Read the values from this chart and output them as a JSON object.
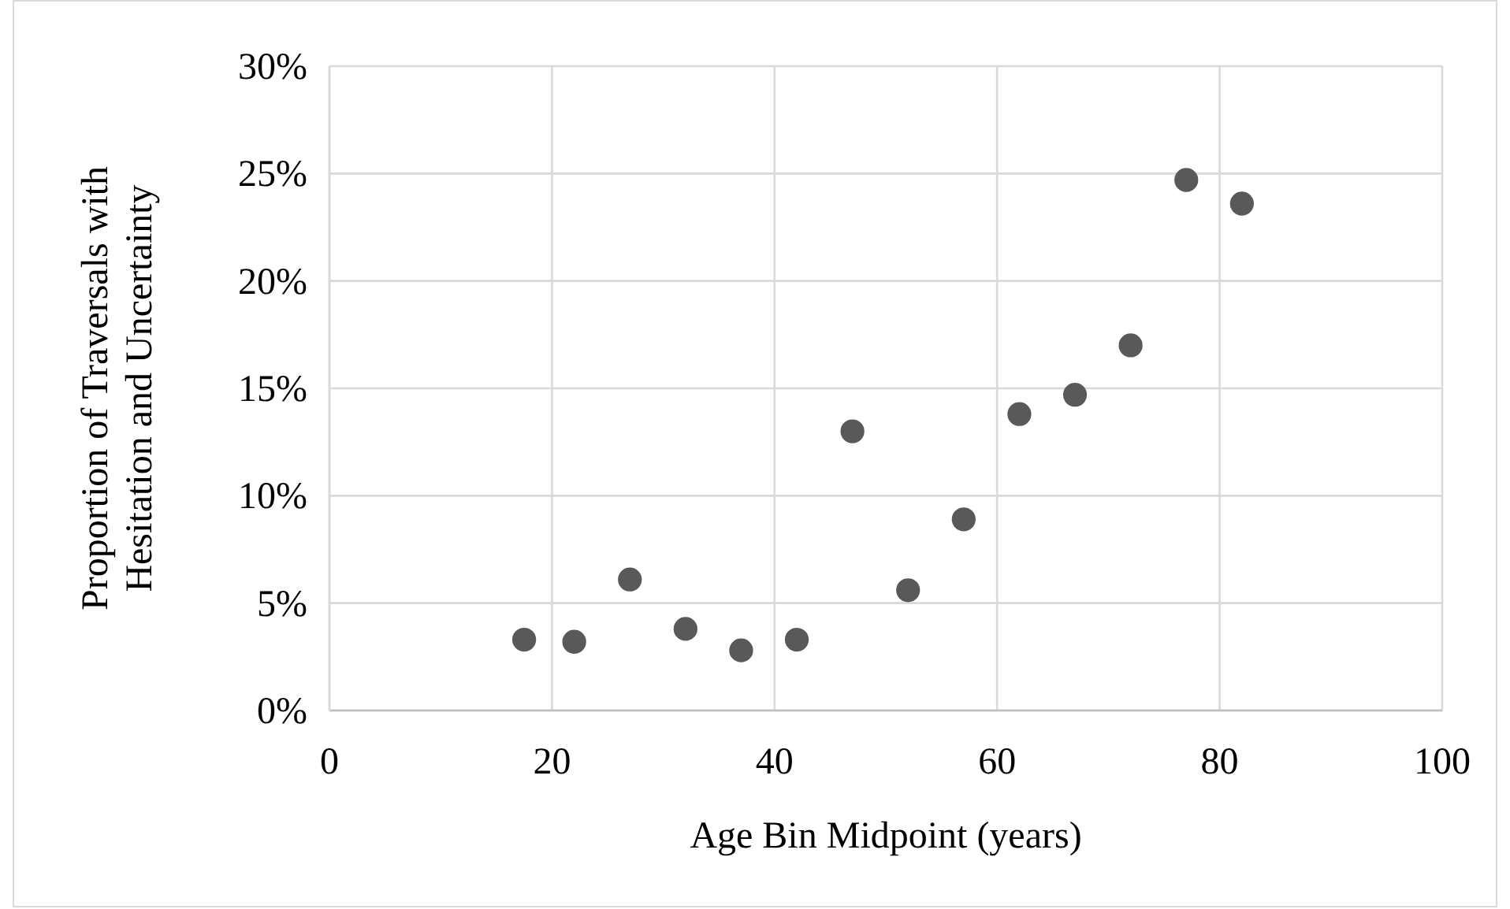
{
  "chart_data": {
    "type": "scatter",
    "xlabel": "Age Bin Midpoint (years)",
    "ylabel": "Proportion of Traversals with Hesitation and Uncertainty",
    "x": [
      17.5,
      22,
      27,
      32,
      37,
      42,
      47,
      52,
      57,
      62,
      67,
      72,
      77,
      82
    ],
    "series": [
      {
        "color": "#595959",
        "values": [
          3.3,
          3.2,
          6.1,
          3.8,
          2.8,
          3.3,
          13.0,
          5.6,
          8.9,
          13.8,
          14.7,
          17.0,
          24.7,
          23.6
        ]
      }
    ],
    "xlim": [
      0,
      100
    ],
    "xticks": [
      0,
      20,
      40,
      60,
      80,
      100
    ],
    "ylim": [
      0,
      30
    ],
    "yticks": [
      {
        "value": 0,
        "label": "0%"
      },
      {
        "value": 5,
        "label": "5%"
      },
      {
        "value": 10,
        "label": "10%"
      },
      {
        "value": 15,
        "label": "15%"
      },
      {
        "value": 20,
        "label": "20%"
      },
      {
        "value": 25,
        "label": "25%"
      },
      {
        "value": 30,
        "label": "30%"
      }
    ],
    "grid": true,
    "marker": "circle"
  }
}
